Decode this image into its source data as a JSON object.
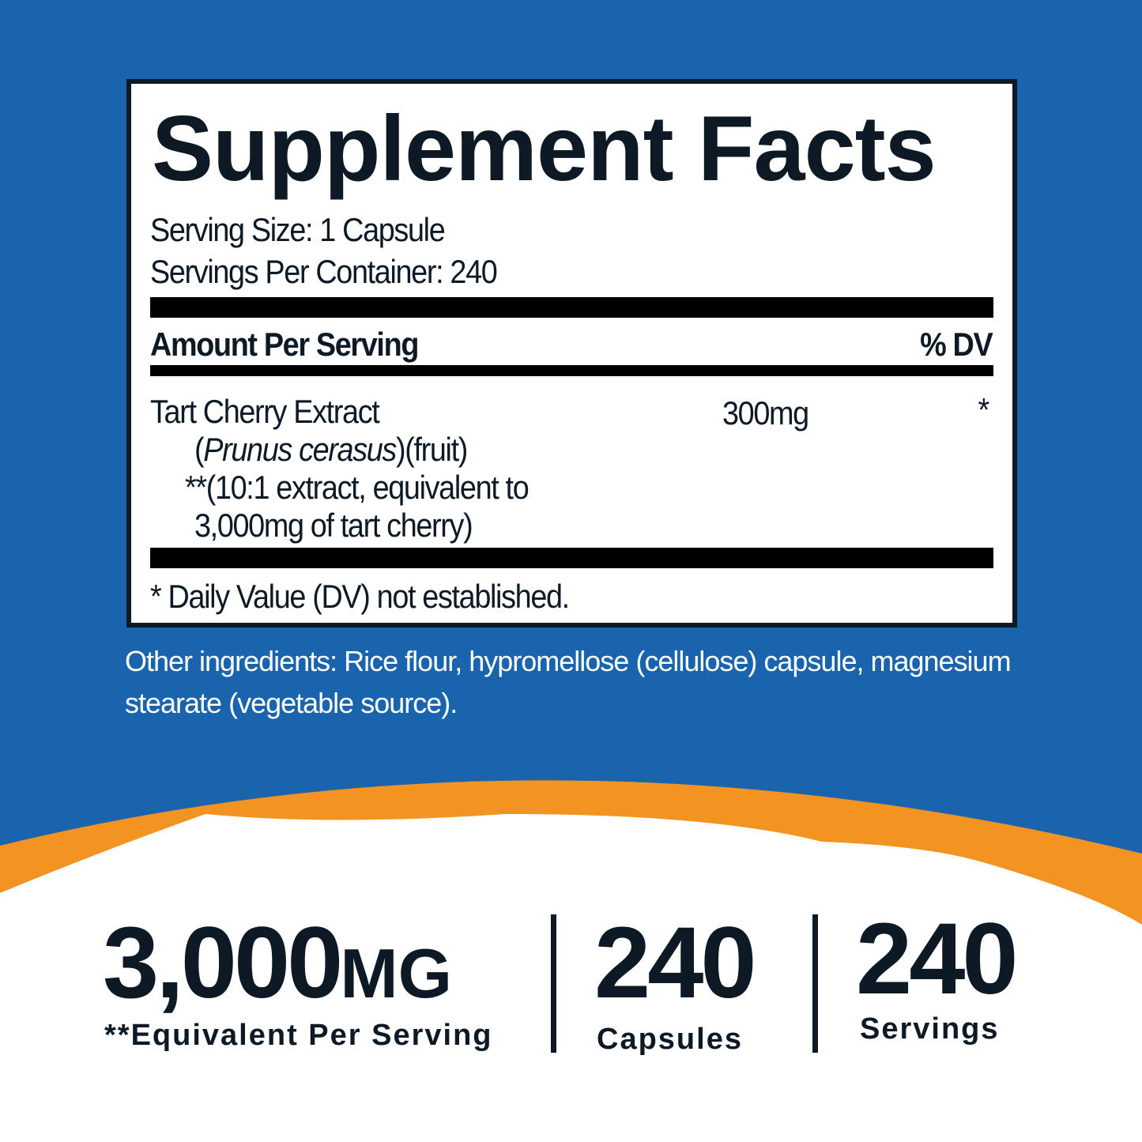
{
  "colors": {
    "background": "#1a64ae",
    "accent": "#f39322",
    "text": "#0d1a26"
  },
  "facts": {
    "title": "Supplement Facts",
    "serving_size": "Serving Size: 1 Capsule",
    "servings_per_container": "Servings Per Container: 240",
    "amount_header": "Amount Per Serving",
    "dv_header": "% DV",
    "ingredient": {
      "name": "Tart Cherry Extract",
      "latin_open": "(",
      "latin": "Prunus cerasus",
      "latin_close": ")(fruit)",
      "note_line1": "**(10:1 extract, equivalent to",
      "note_line2": "3,000mg of tart cherry)",
      "amount": "300mg",
      "dv": "*"
    },
    "footnote": "* Daily Value (DV) not established."
  },
  "other_ingredients": "Other ingredients: Rice flour, hypromellose (cellulose) capsule, magnesium stearate (vegetable source).",
  "stats": [
    {
      "value": "3,000",
      "unit": "MG",
      "label": "**Equivalent Per Serving"
    },
    {
      "value": "240",
      "label": "Capsules"
    },
    {
      "value": "240",
      "label": "Servings"
    }
  ]
}
